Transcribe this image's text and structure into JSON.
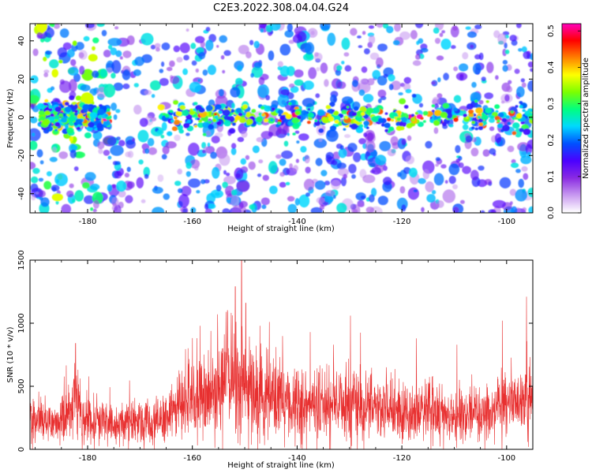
{
  "figure": {
    "title": "C2E3.2022.308.04.04.G24"
  },
  "chart_data": [
    {
      "type": "heatmap",
      "xlabel": "Height of straight line (km)",
      "ylabel": "Frequency (Hz)",
      "xlim": [
        -191,
        -95
      ],
      "ylim": [
        -50,
        49
      ],
      "xticks": [
        -180,
        -160,
        -140,
        -120,
        -100
      ],
      "yticks": [
        -40,
        -20,
        0,
        20,
        40
      ],
      "colorbar": {
        "label": "Normalized spectral amplitude",
        "range": [
          0.0,
          0.52
        ],
        "ticks": [
          "0.0",
          "0.1",
          "0.2",
          "0.3",
          "0.4",
          "0.5"
        ],
        "colors": [
          "#ffffff",
          "#c89af0",
          "#8a2be2",
          "#4b00ff",
          "#0050ff",
          "#00d8ff",
          "#00ff80",
          "#7cff00",
          "#ffff00",
          "#ff8000",
          "#ff0000",
          "#ff00c0"
        ]
      },
      "band_center_hz": 0,
      "band_halfwidth_hz": 6
    },
    {
      "type": "line",
      "xlabel": "Height of straight line (km)",
      "ylabel": "SNR (10 * v/v)",
      "xlim": [
        -191,
        -95
      ],
      "ylim": [
        0,
        1500
      ],
      "xticks": [
        -180,
        -160,
        -140,
        -120,
        -100
      ],
      "yticks": [
        0,
        500,
        1000,
        1500
      ],
      "color": "#e83030",
      "envelope": {
        "x": [
          -191,
          -186,
          -182.5,
          -180,
          -175,
          -170,
          -166,
          -163,
          -160,
          -157,
          -155,
          -153,
          -151.5,
          -150.5,
          -149,
          -146,
          -143,
          -140,
          -138,
          -135,
          -132,
          -129.5,
          -127,
          -124,
          -121,
          -118,
          -115,
          -112,
          -110,
          -107,
          -105,
          -103,
          -101,
          -99.5,
          -98,
          -96.5,
          -95
        ],
        "y": [
          230,
          210,
          330,
          220,
          190,
          200,
          230,
          320,
          380,
          420,
          470,
          520,
          620,
          530,
          430,
          400,
          390,
          380,
          360,
          350,
          340,
          360,
          320,
          300,
          290,
          280,
          300,
          270,
          260,
          270,
          280,
          290,
          330,
          350,
          310,
          370,
          380
        ]
      },
      "peaks": [
        {
          "x": -182.3,
          "y": 840
        },
        {
          "x": -158.5,
          "y": 980
        },
        {
          "x": -155.2,
          "y": 1070
        },
        {
          "x": -151.8,
          "y": 1290
        },
        {
          "x": -150.6,
          "y": 1500
        },
        {
          "x": -149.8,
          "y": 1160
        },
        {
          "x": -147.1,
          "y": 980
        },
        {
          "x": -145.3,
          "y": 1010
        },
        {
          "x": -137.5,
          "y": 930
        },
        {
          "x": -129.8,
          "y": 1060
        },
        {
          "x": -117.2,
          "y": 880
        },
        {
          "x": -109.5,
          "y": 830
        },
        {
          "x": -100.8,
          "y": 1020
        },
        {
          "x": -96.2,
          "y": 1210
        }
      ]
    }
  ]
}
